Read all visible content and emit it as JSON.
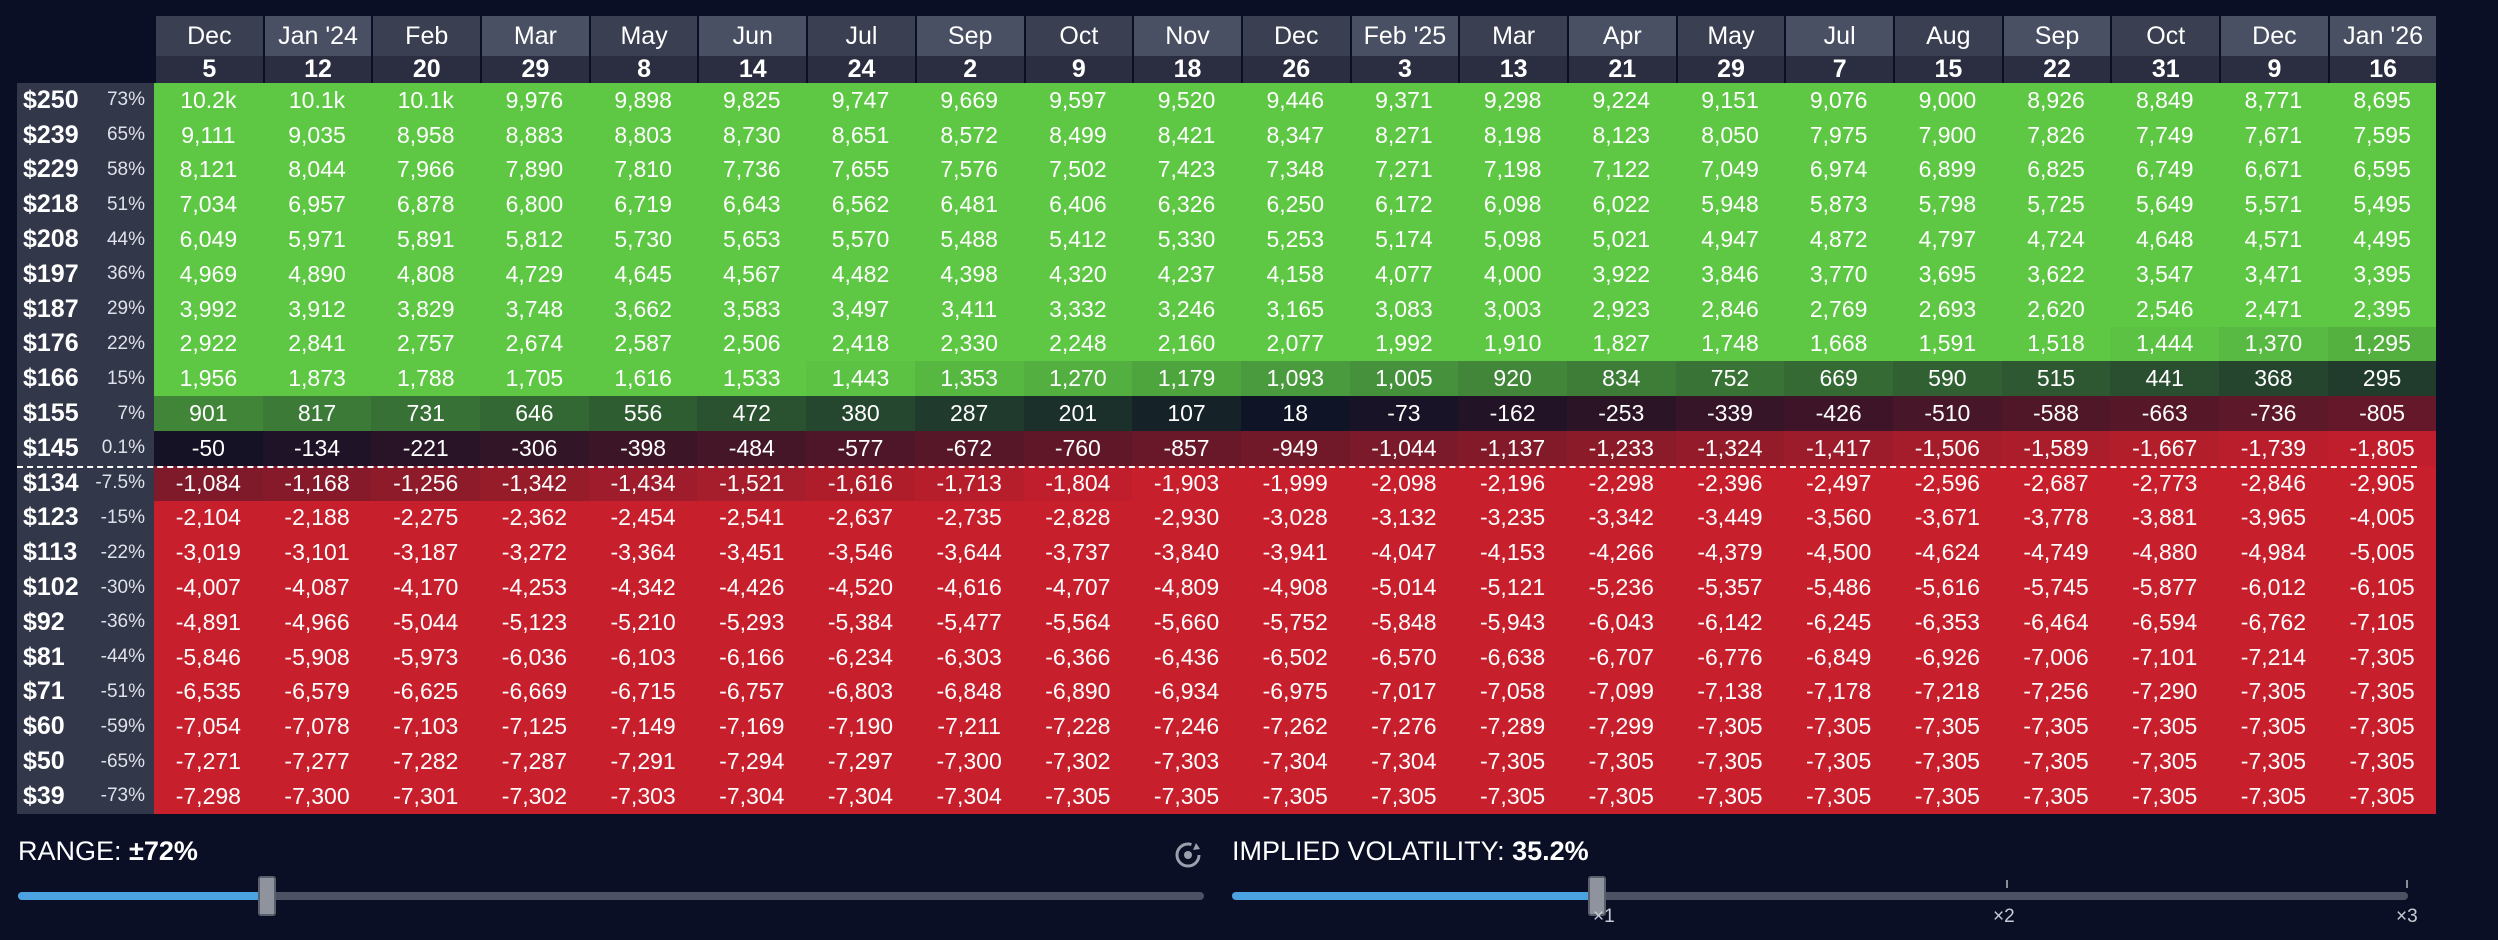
{
  "header": {
    "months": [
      "Dec",
      "Jan '24",
      "Feb",
      "Mar",
      "May",
      "Jun",
      "Jul",
      "Sep",
      "Oct",
      "Nov",
      "Dec",
      "Feb '25",
      "Mar",
      "Apr",
      "May",
      "Jul",
      "Aug",
      "Sep",
      "Oct",
      "Dec",
      "Jan '26"
    ],
    "days": [
      "5",
      "12",
      "20",
      "29",
      "8",
      "14",
      "24",
      "2",
      "9",
      "18",
      "26",
      "3",
      "13",
      "21",
      "29",
      "7",
      "15",
      "22",
      "31",
      "9",
      "16"
    ]
  },
  "rows": [
    {
      "price": "$250",
      "pct": "73%",
      "values": [
        "10.2k",
        "10.1k",
        "10.1k",
        "9,976",
        "9,898",
        "9,825",
        "9,747",
        "9,669",
        "9,597",
        "9,520",
        "9,446",
        "9,371",
        "9,298",
        "9,224",
        "9,151",
        "9,076",
        "9,000",
        "8,926",
        "8,849",
        "8,771",
        "8,695"
      ]
    },
    {
      "price": "$239",
      "pct": "65%",
      "values": [
        "9,111",
        "9,035",
        "8,958",
        "8,883",
        "8,803",
        "8,730",
        "8,651",
        "8,572",
        "8,499",
        "8,421",
        "8,347",
        "8,271",
        "8,198",
        "8,123",
        "8,050",
        "7,975",
        "7,900",
        "7,826",
        "7,749",
        "7,671",
        "7,595"
      ]
    },
    {
      "price": "$229",
      "pct": "58%",
      "values": [
        "8,121",
        "8,044",
        "7,966",
        "7,890",
        "7,810",
        "7,736",
        "7,655",
        "7,576",
        "7,502",
        "7,423",
        "7,348",
        "7,271",
        "7,198",
        "7,122",
        "7,049",
        "6,974",
        "6,899",
        "6,825",
        "6,749",
        "6,671",
        "6,595"
      ]
    },
    {
      "price": "$218",
      "pct": "51%",
      "values": [
        "7,034",
        "6,957",
        "6,878",
        "6,800",
        "6,719",
        "6,643",
        "6,562",
        "6,481",
        "6,406",
        "6,326",
        "6,250",
        "6,172",
        "6,098",
        "6,022",
        "5,948",
        "5,873",
        "5,798",
        "5,725",
        "5,649",
        "5,571",
        "5,495"
      ]
    },
    {
      "price": "$208",
      "pct": "44%",
      "values": [
        "6,049",
        "5,971",
        "5,891",
        "5,812",
        "5,730",
        "5,653",
        "5,570",
        "5,488",
        "5,412",
        "5,330",
        "5,253",
        "5,174",
        "5,098",
        "5,021",
        "4,947",
        "4,872",
        "4,797",
        "4,724",
        "4,648",
        "4,571",
        "4,495"
      ]
    },
    {
      "price": "$197",
      "pct": "36%",
      "values": [
        "4,969",
        "4,890",
        "4,808",
        "4,729",
        "4,645",
        "4,567",
        "4,482",
        "4,398",
        "4,320",
        "4,237",
        "4,158",
        "4,077",
        "4,000",
        "3,922",
        "3,846",
        "3,770",
        "3,695",
        "3,622",
        "3,547",
        "3,471",
        "3,395"
      ]
    },
    {
      "price": "$187",
      "pct": "29%",
      "values": [
        "3,992",
        "3,912",
        "3,829",
        "3,748",
        "3,662",
        "3,583",
        "3,497",
        "3,411",
        "3,332",
        "3,246",
        "3,165",
        "3,083",
        "3,003",
        "2,923",
        "2,846",
        "2,769",
        "2,693",
        "2,620",
        "2,546",
        "2,471",
        "2,395"
      ]
    },
    {
      "price": "$176",
      "pct": "22%",
      "values": [
        "2,922",
        "2,841",
        "2,757",
        "2,674",
        "2,587",
        "2,506",
        "2,418",
        "2,330",
        "2,248",
        "2,160",
        "2,077",
        "1,992",
        "1,910",
        "1,827",
        "1,748",
        "1,668",
        "1,591",
        "1,518",
        "1,444",
        "1,370",
        "1,295"
      ]
    },
    {
      "price": "$166",
      "pct": "15%",
      "values": [
        "1,956",
        "1,873",
        "1,788",
        "1,705",
        "1,616",
        "1,533",
        "1,443",
        "1,353",
        "1,270",
        "1,179",
        "1,093",
        "1,005",
        "920",
        "834",
        "752",
        "669",
        "590",
        "515",
        "441",
        "368",
        "295"
      ]
    },
    {
      "price": "$155",
      "pct": "7%",
      "values": [
        "901",
        "817",
        "731",
        "646",
        "556",
        "472",
        "380",
        "287",
        "201",
        "107",
        "18",
        "-73",
        "-162",
        "-253",
        "-339",
        "-426",
        "-510",
        "-588",
        "-663",
        "-736",
        "-805"
      ]
    },
    {
      "price": "$145",
      "pct": "0.1%",
      "values": [
        "-50",
        "-134",
        "-221",
        "-306",
        "-398",
        "-484",
        "-577",
        "-672",
        "-760",
        "-857",
        "-949",
        "-1,044",
        "-1,137",
        "-1,233",
        "-1,324",
        "-1,417",
        "-1,506",
        "-1,589",
        "-1,667",
        "-1,739",
        "-1,805"
      ]
    },
    {
      "price": "$134",
      "pct": "-7.5%",
      "values": [
        "-1,084",
        "-1,168",
        "-1,256",
        "-1,342",
        "-1,434",
        "-1,521",
        "-1,616",
        "-1,713",
        "-1,804",
        "-1,903",
        "-1,999",
        "-2,098",
        "-2,196",
        "-2,298",
        "-2,396",
        "-2,497",
        "-2,596",
        "-2,687",
        "-2,773",
        "-2,846",
        "-2,905"
      ]
    },
    {
      "price": "$123",
      "pct": "-15%",
      "values": [
        "-2,104",
        "-2,188",
        "-2,275",
        "-2,362",
        "-2,454",
        "-2,541",
        "-2,637",
        "-2,735",
        "-2,828",
        "-2,930",
        "-3,028",
        "-3,132",
        "-3,235",
        "-3,342",
        "-3,449",
        "-3,560",
        "-3,671",
        "-3,778",
        "-3,881",
        "-3,965",
        "-4,005"
      ]
    },
    {
      "price": "$113",
      "pct": "-22%",
      "values": [
        "-3,019",
        "-3,101",
        "-3,187",
        "-3,272",
        "-3,364",
        "-3,451",
        "-3,546",
        "-3,644",
        "-3,737",
        "-3,840",
        "-3,941",
        "-4,047",
        "-4,153",
        "-4,266",
        "-4,379",
        "-4,500",
        "-4,624",
        "-4,749",
        "-4,880",
        "-4,984",
        "-5,005"
      ]
    },
    {
      "price": "$102",
      "pct": "-30%",
      "values": [
        "-4,007",
        "-4,087",
        "-4,170",
        "-4,253",
        "-4,342",
        "-4,426",
        "-4,520",
        "-4,616",
        "-4,707",
        "-4,809",
        "-4,908",
        "-5,014",
        "-5,121",
        "-5,236",
        "-5,357",
        "-5,486",
        "-5,616",
        "-5,745",
        "-5,877",
        "-6,012",
        "-6,105"
      ]
    },
    {
      "price": "$92",
      "pct": "-36%",
      "values": [
        "-4,891",
        "-4,966",
        "-5,044",
        "-5,123",
        "-5,210",
        "-5,293",
        "-5,384",
        "-5,477",
        "-5,564",
        "-5,660",
        "-5,752",
        "-5,848",
        "-5,943",
        "-6,043",
        "-6,142",
        "-6,245",
        "-6,353",
        "-6,464",
        "-6,594",
        "-6,762",
        "-7,105"
      ]
    },
    {
      "price": "$81",
      "pct": "-44%",
      "values": [
        "-5,846",
        "-5,908",
        "-5,973",
        "-6,036",
        "-6,103",
        "-6,166",
        "-6,234",
        "-6,303",
        "-6,366",
        "-6,436",
        "-6,502",
        "-6,570",
        "-6,638",
        "-6,707",
        "-6,776",
        "-6,849",
        "-6,926",
        "-7,006",
        "-7,101",
        "-7,214",
        "-7,305"
      ]
    },
    {
      "price": "$71",
      "pct": "-51%",
      "values": [
        "-6,535",
        "-6,579",
        "-6,625",
        "-6,669",
        "-6,715",
        "-6,757",
        "-6,803",
        "-6,848",
        "-6,890",
        "-6,934",
        "-6,975",
        "-7,017",
        "-7,058",
        "-7,099",
        "-7,138",
        "-7,178",
        "-7,218",
        "-7,256",
        "-7,290",
        "-7,305",
        "-7,305"
      ]
    },
    {
      "price": "$60",
      "pct": "-59%",
      "values": [
        "-7,054",
        "-7,078",
        "-7,103",
        "-7,125",
        "-7,149",
        "-7,169",
        "-7,190",
        "-7,211",
        "-7,228",
        "-7,246",
        "-7,262",
        "-7,276",
        "-7,289",
        "-7,299",
        "-7,305",
        "-7,305",
        "-7,305",
        "-7,305",
        "-7,305",
        "-7,305",
        "-7,305"
      ]
    },
    {
      "price": "$50",
      "pct": "-65%",
      "values": [
        "-7,271",
        "-7,277",
        "-7,282",
        "-7,287",
        "-7,291",
        "-7,294",
        "-7,297",
        "-7,300",
        "-7,302",
        "-7,303",
        "-7,304",
        "-7,304",
        "-7,305",
        "-7,305",
        "-7,305",
        "-7,305",
        "-7,305",
        "-7,305",
        "-7,305",
        "-7,305",
        "-7,305"
      ]
    },
    {
      "price": "$39",
      "pct": "-73%",
      "values": [
        "-7,298",
        "-7,300",
        "-7,301",
        "-7,302",
        "-7,303",
        "-7,304",
        "-7,304",
        "-7,304",
        "-7,305",
        "-7,305",
        "-7,305",
        "-7,305",
        "-7,305",
        "-7,305",
        "-7,305",
        "-7,305",
        "-7,305",
        "-7,305",
        "-7,305",
        "-7,305",
        "-7,305"
      ]
    }
  ],
  "range_control": {
    "label": "RANGE:",
    "value": "±72%",
    "level_fraction": 0.21
  },
  "iv_control": {
    "label": "IMPLIED VOLATILITY:",
    "value": "35.2%",
    "level_fraction": 0.31,
    "ticks": [
      "×1",
      "×2",
      "×3"
    ]
  },
  "colors": {
    "profit": "#5ec844",
    "loss": "#c81f2c",
    "neutral": "#0e1226",
    "accent": "#4aa3e0",
    "background": "#0b0f25"
  },
  "icons": {
    "reset": "reset-icon"
  }
}
